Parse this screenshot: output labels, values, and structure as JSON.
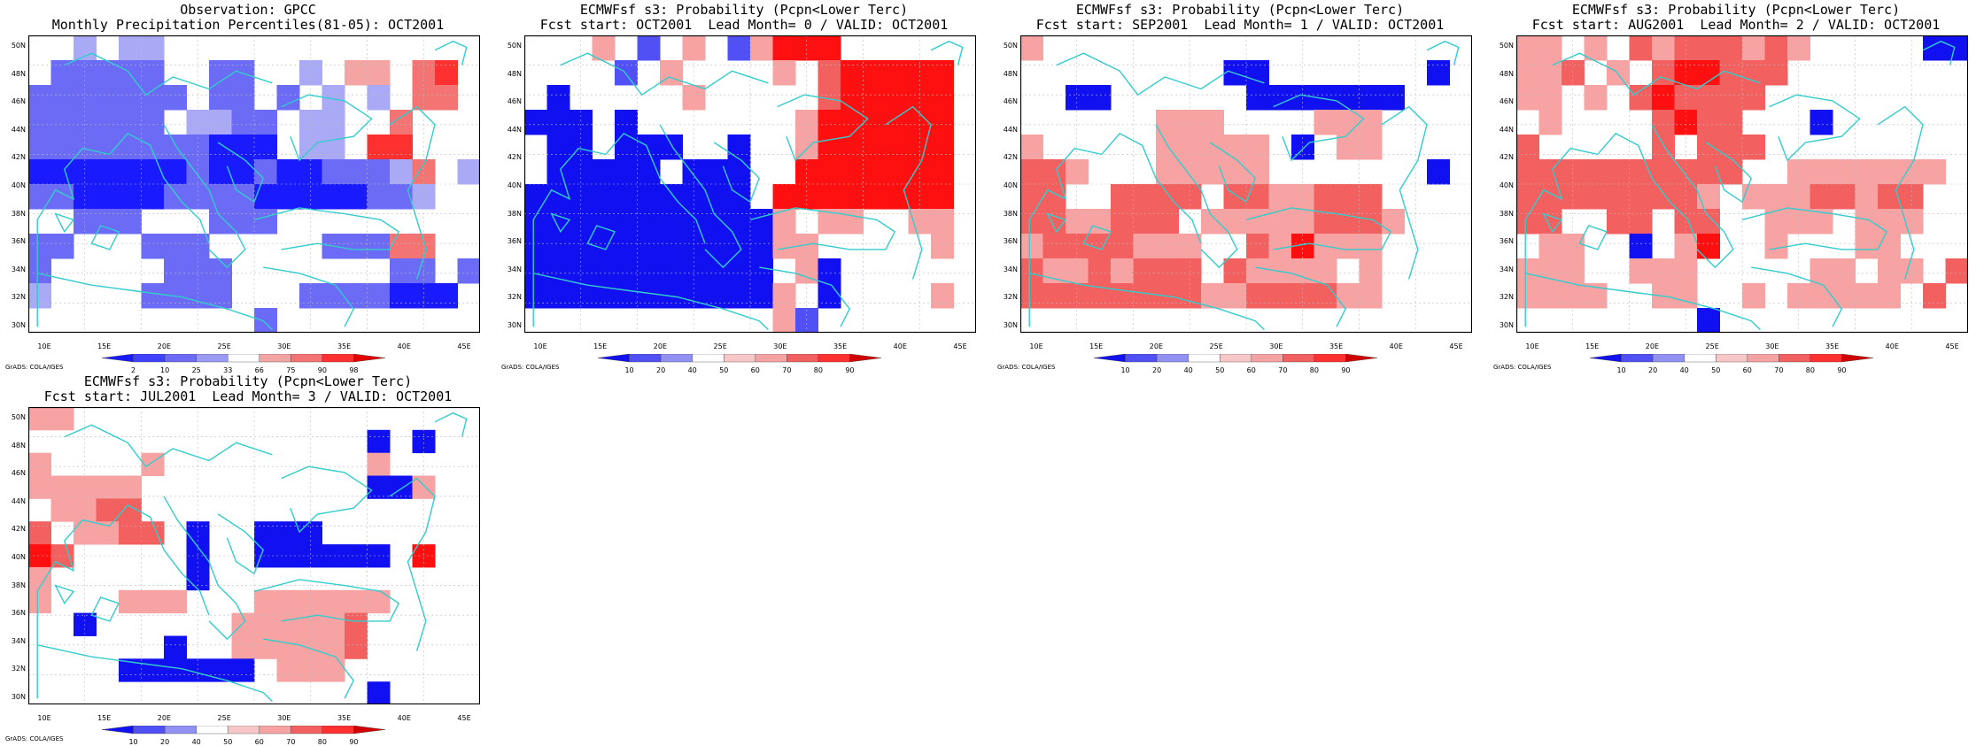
{
  "panels": [
    {
      "title_line1": "Observation: GPCC",
      "title_line2": "Monthly Precipitation Percentiles(81-05): OCT2001",
      "scale": "obs",
      "rows": [
        "..c.cc..dd",
        ".bbbbb..bb..c.aa.rR",
        "bbbbbbb.bb.b.c.c.rr",
        "bbbbbb.ccbb.cc..r..",
        "bbbbbbbbBBB.cc.RR.",
        "BBBBBBBbBBbBBbbbcr.c",
        "bbBBBBbbbbBBBBBbbc..",
        "..bbb...bbb.........",
        "bb...bbb.....bbbrr..",
        "b.....bbb.......bb.b..",
        "c....bbbb...bbbbBBB.",
        "..........b........."
      ],
      "colorbar": {
        "labels": [
          "2",
          "10",
          "25",
          "33",
          "66",
          "75",
          "90",
          "98"
        ]
      }
    },
    {
      "title_line1": "ECMWFsf s3: Probability (Pcpn<Lower Terc)",
      "title_line2": "Fcst start: OCT2001  Lead Month= 0 / VALID: OCT2001",
      "scale": "prob",
      "rows": [
        "...a.b.p.bpRRR",
        "....b.a....a.rRRRRR",
        ".B.....a.....rRRRRR",
        "BBB.B.......aRRRRRR",
        ".BB.BBB..B..aRRRRRR",
        ".BBBBB.BBB..RRRRRRR",
        "BBBBBBBBBB.RRRRRRRR",
        "BBBBBBBBBBBa.aa..aa",
        "BBBBBBBBBBBaa.....a",
        "BBBBBBBBBBB.aB.....",
        "BBBBBBBBBBBa.B....a",
        "...........ab......"
      ],
      "colorbar": {
        "labels": [
          "10",
          "20",
          "40",
          "50",
          "60",
          "70",
          "80",
          "90"
        ]
      }
    },
    {
      "title_line1": "ECMWFsf s3: Probability (Pcpn<Lower Terc)",
      "title_line2": "Fcst start: SEP2001  Lead Month= 1 / VALID: OCT2001",
      "scale": "prob",
      "rows": [
        "a..................",
        ".........BB.......B",
        "..BB......BBBBBBB..",
        "......aaa....aaa...",
        "a.....aaaaa.B.aa..",
        "rra...aaaaa.......B",
        "rr..rrrr.rraarrr..",
        "rraarrr.aaaaarrra",
        "arrrraaa..raRaaa.",
        "raararrr.raaaa.a.",
        "rrrrrrrraarrrraa..",
        "...................."
      ],
      "colorbar": {
        "labels": [
          "10",
          "20",
          "40",
          "50",
          "60",
          "70",
          "80",
          "90"
        ]
      }
    },
    {
      "title_line1": "ECMWFsf s3: Probability (Pcpn<Lower Terc)",
      "title_line2": "Fcst start: AUG2001  Lead Month= 2 / VALID: OCT2001",
      "scale": "prob",
      "rows": [
        "aa.a.rarrrara.....BBB",
        "aar.a.rRRrrr......",
        "aa.a.rRrrrr.......",
        ".a....rRrr...B....",
        "r.....r.rrr.......",
        "rrrrrrrrrr..aaaaaaa",
        "rrrrrrrra.aaarrarr..",
        "rr..rr.rr..aaa.aaa..",
        ".aa..B.aR..a...aa..",
        "aaa..aaa.....aa.aa.r",
        "aaaa..aa..a.aaaaa.r",
        "........B..........."
      ],
      "colorbar": {
        "labels": [
          "10",
          "20",
          "40",
          "50",
          "60",
          "70",
          "80",
          "90"
        ]
      }
    },
    {
      "title_line1": "ECMWFsf s3: Probability (Pcpn<Lower Terc)",
      "title_line2": "Fcst start: JUL2001  Lead Month= 3 / VALID: OCT2001",
      "scale": "prob",
      "rows": [
        "aa..............",
        "...............B.B",
        "a....a.........a.",
        "aaaaa..........BBa",
        ".aarr...........",
        "r.aarr.B..BBB.....",
        "Rr.....B..BBBBBB.R",
        "a......B........",
        "a...aaa...aaaaaa..",
        "..B......aaaaar.",
        "......B..aaaaar..",
        "....BBBBBB.aaa.....",
        "...............B"
      ],
      "colorbar": {
        "labels": [
          "10",
          "20",
          "40",
          "50",
          "60",
          "70",
          "80",
          "90"
        ]
      }
    }
  ],
  "axes": {
    "lat_labels": [
      "50N",
      "48N",
      "46N",
      "44N",
      "42N",
      "40N",
      "38N",
      "36N",
      "34N",
      "32N",
      "30N"
    ],
    "lon_labels": [
      "10E",
      "15E",
      "20E",
      "25E",
      "30E",
      "35E",
      "40E",
      "45E"
    ]
  },
  "credit": "GrADS: COLA/IGES",
  "colors": {
    "obs": {
      "B": "#1a1aff",
      "b": "#6b6bf5",
      "c": "#a9a9f5",
      "a": "#f5a4a4",
      "r": "#f47373",
      "R": "#ff3030",
      "p": "#f5a4a4",
      ".": "#ffffff"
    },
    "prob": {
      "B": "#1010f0",
      "b": "#5050f5",
      "c": "#9090f5",
      "a": "#f7a3a3",
      "p": "#f7a3a3",
      "r": "#f26060",
      "R": "#ff1010",
      ".": "#ffffff"
    },
    "grid": "#bbbbbb",
    "coast": "#33cccc"
  }
}
